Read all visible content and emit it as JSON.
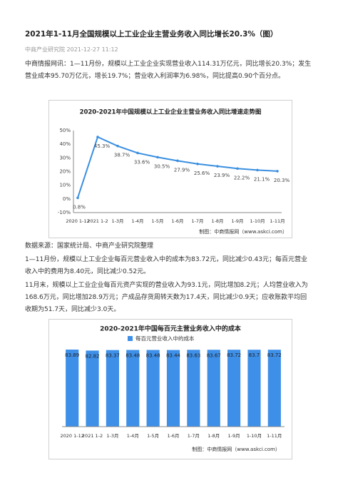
{
  "article": {
    "title": "2021年1-11月全国规模以上工业企业主营业务收入同比增长20.3%（图）",
    "meta": "中商产业研究院 2021-12-27 11:12",
    "paragraphs": [
      "中商情报网讯：1—11月份，规模以上工业企业实现营业收入114.31万亿元，同比增长20.3%；发生营业成本95.70万亿元，增长19.7%；营业收入利润率为6.98%，同比提高0.90个百分点。",
      "1—11月份，规模以上工业企业每百元营业收入中的成本为83.72元，同比减少0.43元；每百元营业收入中的费用为8.40元，同比减少0.52元。",
      "11月末，规模以上工业企业每百元资产实现的营业收入为93.1元，同比增加8.2元；人均营业收入为168.6万元，同比增加28.9万元；产成品存货周转天数为17.4天，同比减少0.9天；应收账款平均回收期为51.7天，同比减少3.0天。"
    ],
    "source_note": "数据来源：国家统计局、中商产业研究院整理"
  },
  "chart_data": [
    {
      "type": "line",
      "title": "2020-2021年中国规模以上工业企业主营业务收入同比增速走势图",
      "categories": [
        "2020 1-12",
        "2021 1-2",
        "1-3月",
        "1-4月",
        "1-5月",
        "1-6月",
        "1-7月",
        "1-8月",
        "1-9月",
        "1-10月",
        "1-11月"
      ],
      "values": [
        0.8,
        45.3,
        38.7,
        33.6,
        30.5,
        27.9,
        25.6,
        23.9,
        22.2,
        21.1,
        20.3
      ],
      "value_labels": [
        "0.8%",
        "45.3%",
        "38.7%",
        "33.6%",
        "30.5%",
        "27.9%",
        "25.6%",
        "23.9%",
        "22.2%",
        "21.1%",
        "20.3%"
      ],
      "color": "#3a8fe0",
      "ylim": [
        -10,
        50
      ],
      "yticks": [
        {
          "value": -10,
          "label": "-10%"
        },
        {
          "value": 0,
          "label": "0%"
        },
        {
          "value": 10,
          "label": "10%"
        },
        {
          "value": 20,
          "label": "20%"
        },
        {
          "value": 30,
          "label": "30%"
        },
        {
          "value": 40,
          "label": "40%"
        },
        {
          "value": 50,
          "label": "50%"
        }
      ],
      "grid": false,
      "source": "制图：中商情报网（www.askci.com）"
    },
    {
      "type": "bar",
      "title": "2020-2021年中国每百元主营业务收入中的成本",
      "categories": [
        "2020 1-12",
        "2021 1-2",
        "1-3月",
        "1-4月",
        "1-5月",
        "1-6月",
        "1-7月",
        "1-8月",
        "1-9月",
        "1-10月",
        "1-11月"
      ],
      "series": [
        {
          "name": "每百元营业收入中的成本",
          "color": "#3d8fe8",
          "values": [
            83.89,
            82.82,
            83.37,
            83.48,
            83.48,
            83.44,
            83.63,
            83.67,
            83.72,
            83.7,
            83.72
          ]
        }
      ],
      "legend": "top",
      "source": "制图：中商情报网（www.askci.com）"
    }
  ]
}
